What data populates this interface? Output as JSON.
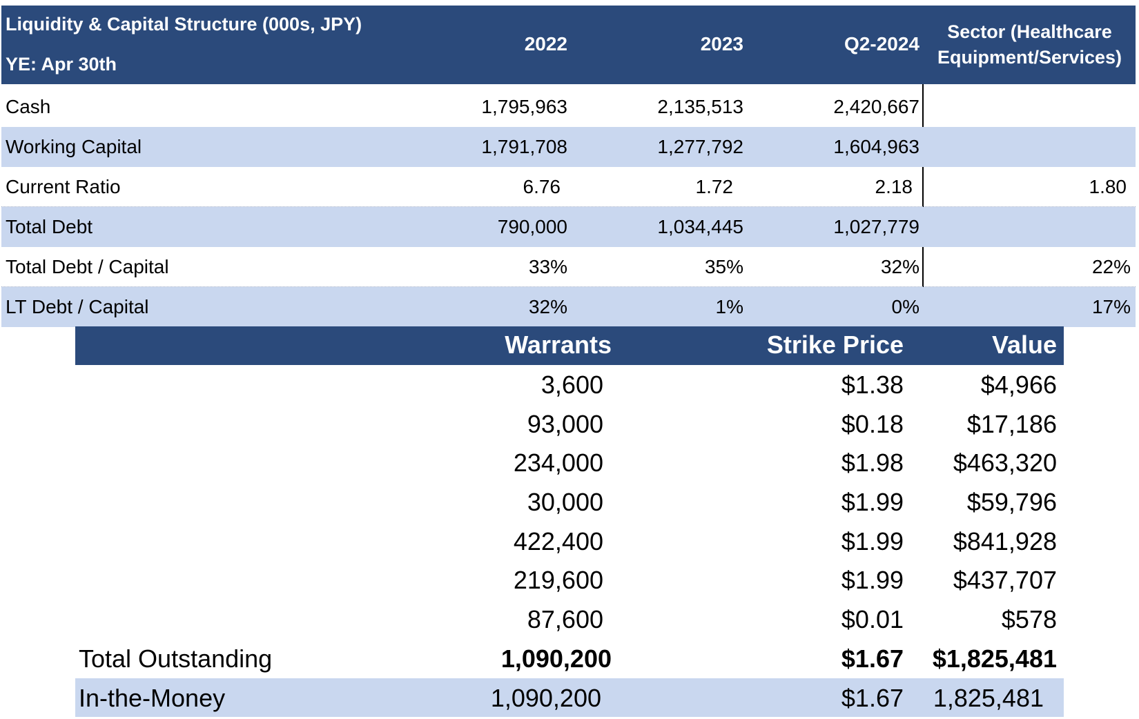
{
  "liquidity": {
    "title": "Liquidity & Capital Structure (000s, JPY)",
    "fiscal_year": "YE: Apr 30th",
    "columns": [
      "2022",
      "2023",
      "Q2-2024"
    ],
    "sector_label_line1": "Sector (Healthcare",
    "sector_label_line2": "Equipment/Services)",
    "rows": [
      {
        "label": "Cash",
        "values": [
          "1,795,963",
          "2,135,513",
          "2,420,667"
        ],
        "sector": ""
      },
      {
        "label": "Working Capital",
        "values": [
          "1,791,708",
          "1,277,792",
          "1,604,963"
        ],
        "sector": ""
      },
      {
        "label": "Current Ratio",
        "values": [
          "6.76",
          "1.72",
          "2.18"
        ],
        "sector": "1.80"
      },
      {
        "label": "Total Debt",
        "values": [
          "790,000",
          "1,034,445",
          "1,027,779"
        ],
        "sector": ""
      },
      {
        "label": "Total Debt / Capital",
        "values": [
          "33%",
          "35%",
          "32%"
        ],
        "sector": "22%"
      },
      {
        "label": "LT Debt / Capital",
        "values": [
          "32%",
          "1%",
          "0%"
        ],
        "sector": "17%"
      }
    ]
  },
  "warrants": {
    "headers": [
      "Warrants",
      "Strike Price",
      "Value"
    ],
    "rows": [
      {
        "warrants": "3,600",
        "strike": "$1.38",
        "value": "$4,966"
      },
      {
        "warrants": "93,000",
        "strike": "$0.18",
        "value": "$17,186"
      },
      {
        "warrants": "234,000",
        "strike": "$1.98",
        "value": "$463,320"
      },
      {
        "warrants": "30,000",
        "strike": "$1.99",
        "value": "$59,796"
      },
      {
        "warrants": "422,400",
        "strike": "$1.99",
        "value": "$841,928"
      },
      {
        "warrants": "219,600",
        "strike": "$1.99",
        "value": "$437,707"
      },
      {
        "warrants": "87,600",
        "strike": "$0.01",
        "value": "$578"
      }
    ],
    "total": {
      "label": "Total Outstanding",
      "warrants": "1,090,200",
      "strike": "$1.67",
      "value": "$1,825,481"
    },
    "itm": {
      "label": "In-the-Money",
      "warrants": "1,090,200",
      "strike": "$1.67",
      "value": "1,825,481"
    }
  },
  "colors": {
    "header_bg": "#2b4a7b",
    "band_bg": "#c9d7ef"
  }
}
